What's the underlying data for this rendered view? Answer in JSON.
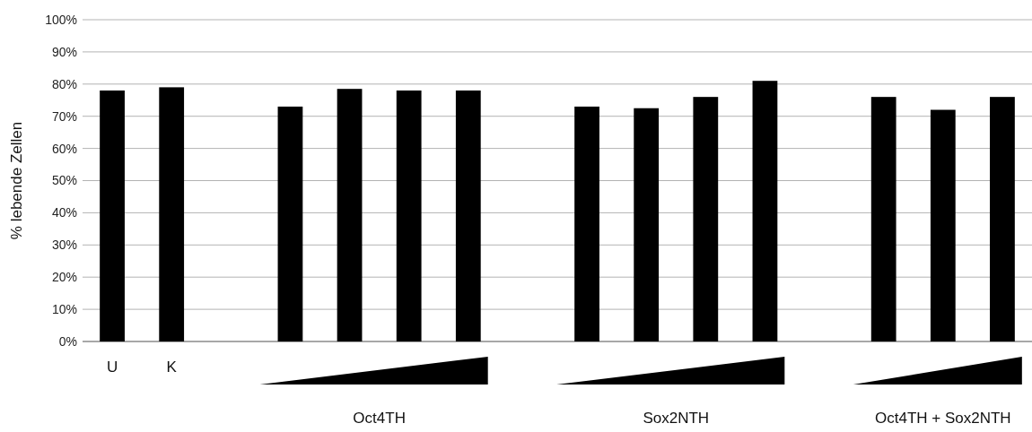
{
  "chart_data": {
    "type": "bar",
    "ylabel": "% lebende Zellen",
    "categories": [
      "U",
      "K",
      null,
      null,
      null,
      null,
      null,
      null,
      null,
      null,
      null,
      null,
      null,
      null,
      null,
      null
    ],
    "values": [
      78,
      79,
      null,
      73,
      78.5,
      78,
      78,
      null,
      73,
      72.5,
      76,
      81,
      null,
      76,
      72,
      76
    ],
    "color": "#000000",
    "ylim": [
      0,
      100
    ],
    "yticks": [
      {
        "value": 0,
        "label": "0%"
      },
      {
        "value": 10,
        "label": "10%"
      },
      {
        "value": 20,
        "label": "20%"
      },
      {
        "value": 30,
        "label": "30%"
      },
      {
        "value": 40,
        "label": "40%"
      },
      {
        "value": 50,
        "label": "50%"
      },
      {
        "value": 60,
        "label": "60%"
      },
      {
        "value": 70,
        "label": "70%"
      },
      {
        "value": 80,
        "label": "80%"
      },
      {
        "value": 90,
        "label": "90%"
      },
      {
        "value": 100,
        "label": "100%"
      }
    ],
    "grid": "y",
    "annotations": [
      "Oct4TH",
      "Sox2NTH",
      "Oct4TH + Sox2NTH"
    ]
  }
}
